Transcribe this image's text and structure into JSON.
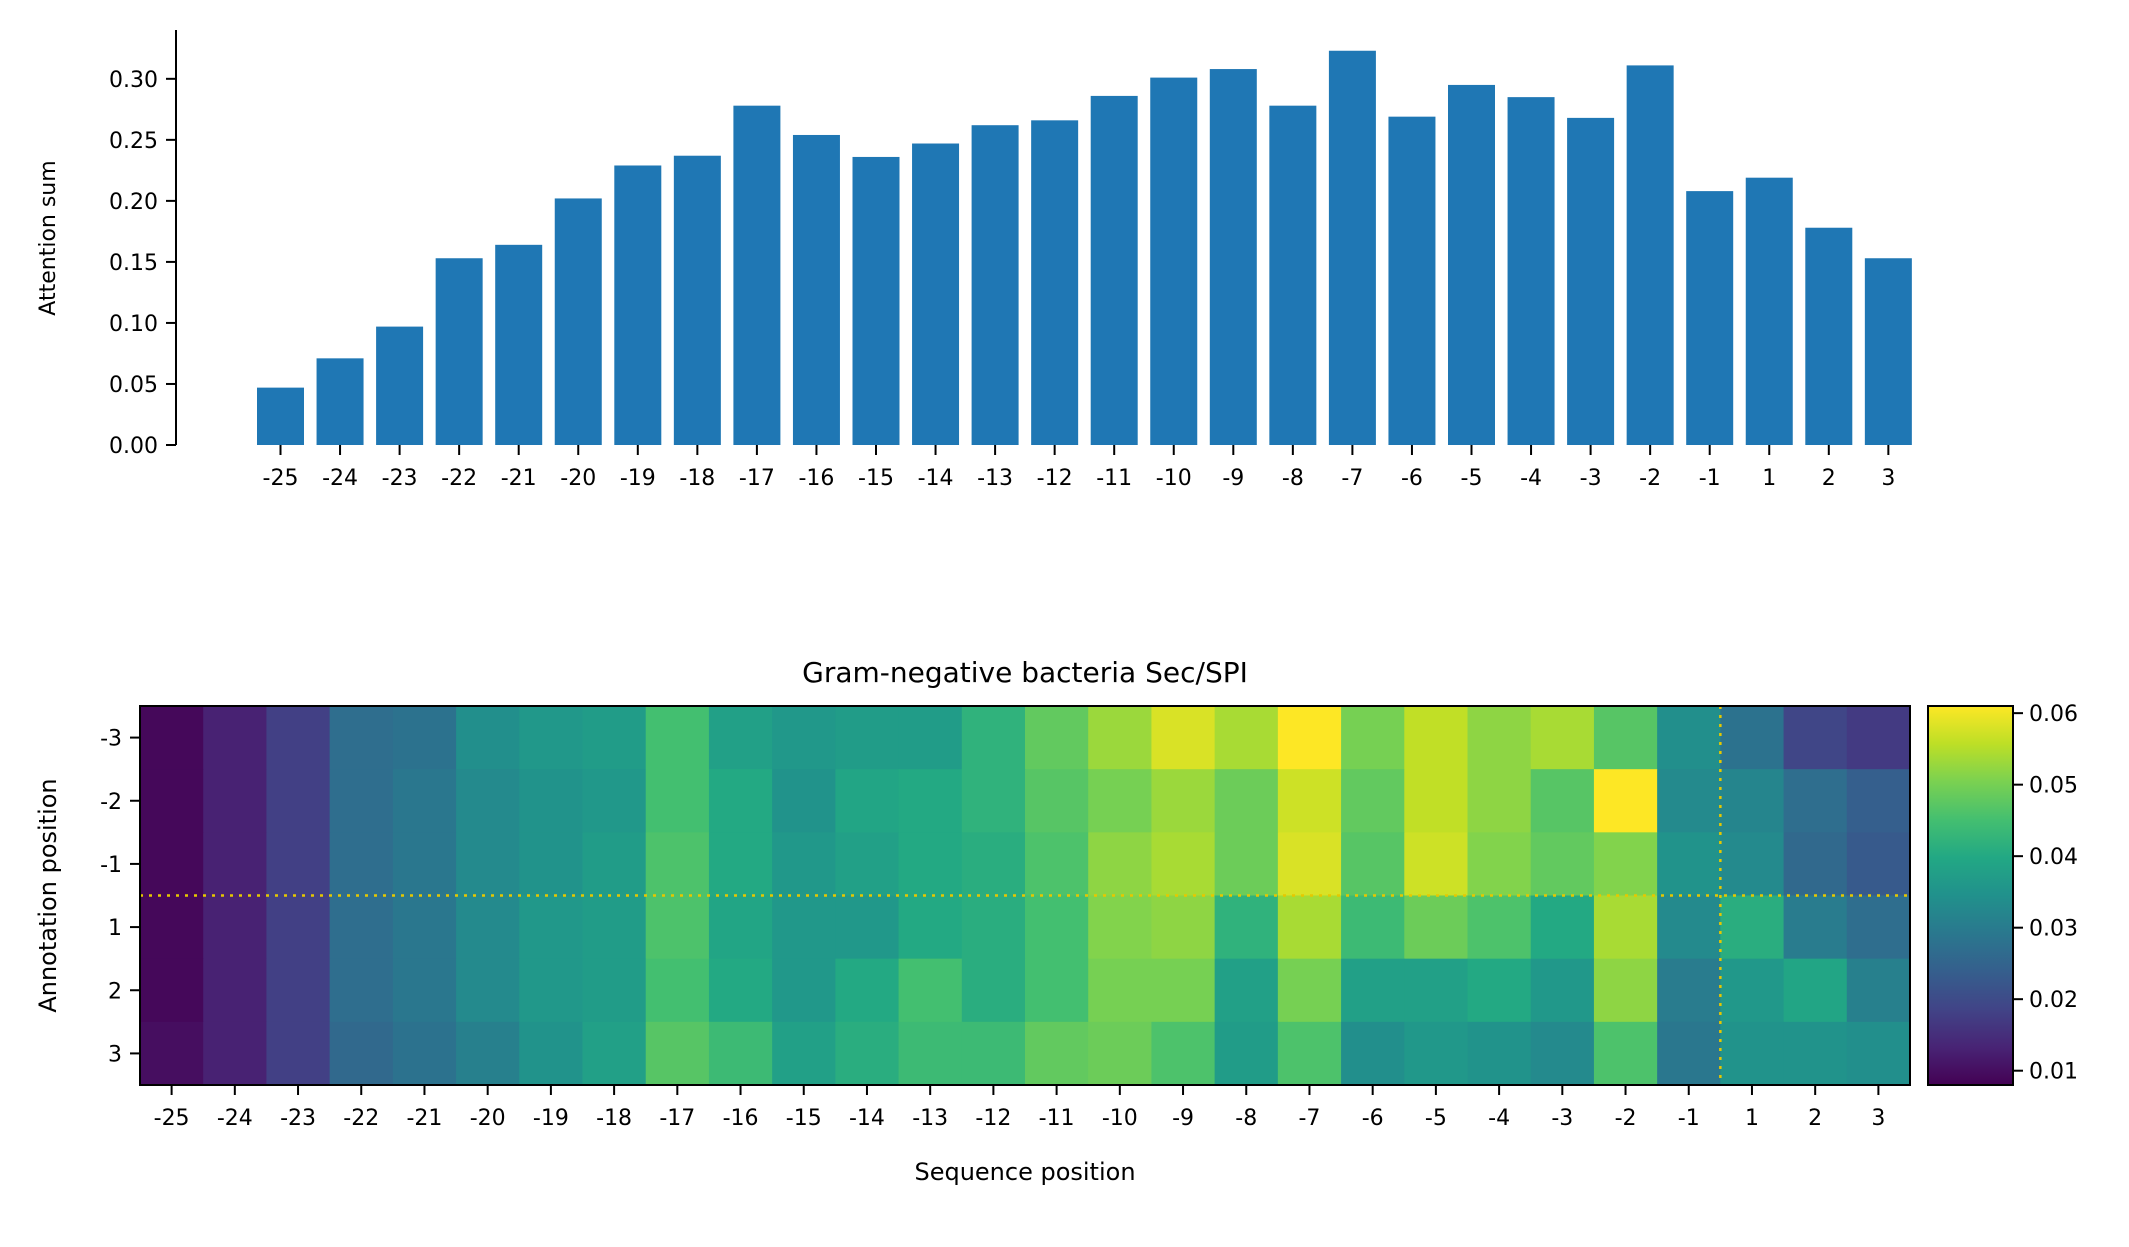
{
  "chart_data": [
    {
      "type": "bar",
      "title": "",
      "xlabel": "",
      "ylabel": "Attention sum",
      "ylim": [
        0,
        0.34
      ],
      "yticks": [
        "0.00",
        "0.05",
        "0.10",
        "0.15",
        "0.20",
        "0.25",
        "0.30"
      ],
      "categories": [
        "-25",
        "-24",
        "-23",
        "-22",
        "-21",
        "-20",
        "-19",
        "-18",
        "-17",
        "-16",
        "-15",
        "-14",
        "-13",
        "-12",
        "-11",
        "-10",
        "-9",
        "-8",
        "-7",
        "-6",
        "-5",
        "-4",
        "-3",
        "-2",
        "-1",
        "1",
        "2",
        "3"
      ],
      "values": [
        0.047,
        0.071,
        0.097,
        0.153,
        0.164,
        0.202,
        0.229,
        0.237,
        0.278,
        0.254,
        0.236,
        0.247,
        0.262,
        0.266,
        0.286,
        0.301,
        0.308,
        0.278,
        0.323,
        0.269,
        0.295,
        0.285,
        0.268,
        0.311,
        0.208,
        0.219,
        0.178,
        0.153
      ],
      "color": "#1f77b4",
      "grid": false
    },
    {
      "type": "heatmap",
      "title": "Gram-negative bacteria Sec/SPI",
      "xlabel": "Sequence position",
      "ylabel": "Annotation position",
      "x": [
        "-25",
        "-24",
        "-23",
        "-22",
        "-21",
        "-20",
        "-19",
        "-18",
        "-17",
        "-16",
        "-15",
        "-14",
        "-13",
        "-12",
        "-11",
        "-10",
        "-9",
        "-8",
        "-7",
        "-6",
        "-5",
        "-4",
        "-3",
        "-2",
        "-1",
        "1",
        "2",
        "3"
      ],
      "y": [
        "-3",
        "-2",
        "-1",
        "1",
        "2",
        "3"
      ],
      "colormap": "viridis",
      "vmin": 0.008,
      "vmax": 0.061,
      "colorbar_ticks": [
        "0.01",
        "0.02",
        "0.03",
        "0.04",
        "0.05",
        "0.06"
      ],
      "marker_line_color": "#e6c800",
      "marker_line_between_x": [
        "-1",
        "1"
      ],
      "marker_line_between_y": [
        "-1",
        "1"
      ],
      "values": [
        [
          0.009,
          0.013,
          0.018,
          0.027,
          0.028,
          0.034,
          0.036,
          0.037,
          0.045,
          0.038,
          0.036,
          0.037,
          0.037,
          0.042,
          0.048,
          0.053,
          0.058,
          0.054,
          0.061,
          0.05,
          0.056,
          0.052,
          0.054,
          0.047,
          0.034,
          0.028,
          0.019,
          0.017
        ],
        [
          0.009,
          0.013,
          0.018,
          0.027,
          0.029,
          0.033,
          0.035,
          0.036,
          0.045,
          0.04,
          0.035,
          0.039,
          0.04,
          0.042,
          0.047,
          0.05,
          0.053,
          0.049,
          0.057,
          0.048,
          0.056,
          0.052,
          0.047,
          0.061,
          0.033,
          0.032,
          0.027,
          0.024
        ],
        [
          0.009,
          0.013,
          0.018,
          0.027,
          0.029,
          0.033,
          0.035,
          0.037,
          0.046,
          0.04,
          0.036,
          0.038,
          0.04,
          0.041,
          0.046,
          0.052,
          0.054,
          0.049,
          0.058,
          0.047,
          0.057,
          0.051,
          0.048,
          0.051,
          0.035,
          0.033,
          0.026,
          0.023
        ],
        [
          0.009,
          0.013,
          0.018,
          0.027,
          0.029,
          0.033,
          0.036,
          0.037,
          0.046,
          0.039,
          0.036,
          0.036,
          0.04,
          0.041,
          0.045,
          0.051,
          0.052,
          0.042,
          0.054,
          0.044,
          0.049,
          0.046,
          0.04,
          0.054,
          0.033,
          0.041,
          0.03,
          0.027
        ],
        [
          0.009,
          0.013,
          0.018,
          0.027,
          0.029,
          0.033,
          0.036,
          0.037,
          0.045,
          0.04,
          0.036,
          0.04,
          0.045,
          0.041,
          0.045,
          0.05,
          0.05,
          0.038,
          0.05,
          0.038,
          0.038,
          0.04,
          0.036,
          0.052,
          0.03,
          0.036,
          0.039,
          0.031
        ],
        [
          0.01,
          0.013,
          0.018,
          0.026,
          0.028,
          0.031,
          0.035,
          0.038,
          0.047,
          0.044,
          0.038,
          0.041,
          0.044,
          0.044,
          0.048,
          0.049,
          0.046,
          0.037,
          0.046,
          0.034,
          0.036,
          0.035,
          0.033,
          0.046,
          0.029,
          0.035,
          0.035,
          0.034
        ]
      ]
    }
  ]
}
